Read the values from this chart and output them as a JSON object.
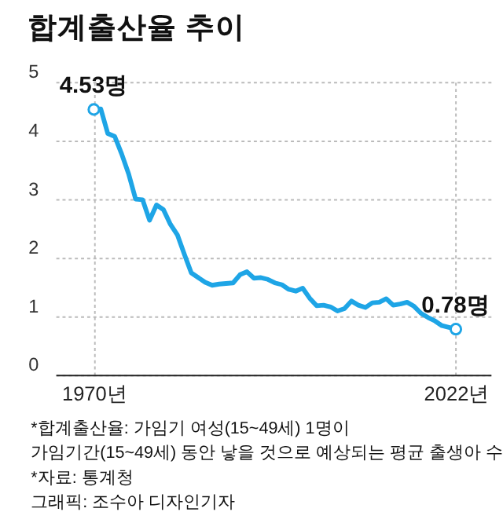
{
  "chart_data": {
    "type": "line",
    "title": "합계출산율 추이",
    "x": [
      1970,
      1971,
      1972,
      1973,
      1974,
      1975,
      1976,
      1977,
      1978,
      1979,
      1980,
      1981,
      1982,
      1983,
      1984,
      1985,
      1986,
      1987,
      1988,
      1989,
      1990,
      1991,
      1992,
      1993,
      1994,
      1995,
      1996,
      1997,
      1998,
      1999,
      2000,
      2001,
      2002,
      2003,
      2004,
      2005,
      2006,
      2007,
      2008,
      2009,
      2010,
      2011,
      2012,
      2013,
      2014,
      2015,
      2016,
      2017,
      2018,
      2019,
      2020,
      2021,
      2022
    ],
    "values": [
      4.53,
      4.54,
      4.12,
      4.07,
      3.77,
      3.43,
      3.0,
      2.99,
      2.64,
      2.9,
      2.82,
      2.57,
      2.39,
      2.06,
      1.74,
      1.66,
      1.58,
      1.53,
      1.55,
      1.56,
      1.57,
      1.71,
      1.76,
      1.65,
      1.66,
      1.63,
      1.57,
      1.54,
      1.46,
      1.43,
      1.48,
      1.31,
      1.18,
      1.19,
      1.16,
      1.09,
      1.13,
      1.26,
      1.19,
      1.15,
      1.23,
      1.24,
      1.3,
      1.19,
      1.21,
      1.24,
      1.17,
      1.05,
      0.98,
      0.92,
      0.84,
      0.81,
      0.78
    ],
    "color": "#1ea5e6",
    "marker": "none",
    "line_style": "solid",
    "xlim": [
      1964.5,
      2027
    ],
    "xticks": [
      {
        "value": 1970,
        "label": "1970년"
      },
      {
        "value": 2022,
        "label": "2022년"
      }
    ],
    "ylim": [
      0,
      5
    ],
    "yticks": [
      0,
      1,
      2,
      3,
      4,
      5
    ],
    "grid": true,
    "annotations": [
      {
        "text": "4.53명",
        "x": 1970,
        "y": 4.53
      },
      {
        "text": "0.78명",
        "x": 2022,
        "y": 0.78
      },
      "*합계출산율: 가임기 여성(15~49세) 1명이\n가임기간(15~49세) 동안 낳을 것으로 예상되는 평균 출생아 수",
      "*자료: 통계청",
      "그래픽: 조수아 디자인기자"
    ]
  }
}
